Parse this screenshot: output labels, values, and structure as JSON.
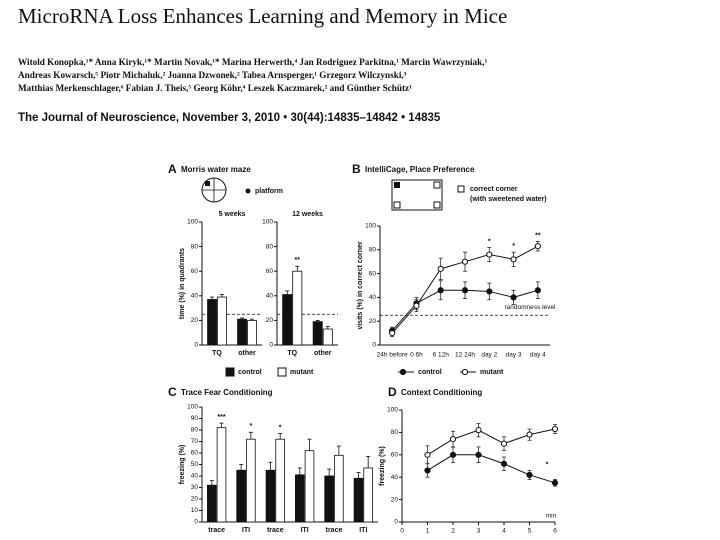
{
  "paper": {
    "title": "MicroRNA Loss Enhances Learning and Memory in Mice",
    "authors": [
      "Witold Konopka,¹* Anna Kiryk,¹* Martin Novak,¹* Marina Herwerth,⁴ Jan Rodriguez Parkitna,¹ Marcin Wawrzyniak,¹",
      "Andreas Kowarsch,⁵ Piotr Michaluk,² Joanna Dzwonek,² Tabea Arnsperger,¹ Grzegorz Wilczynski,³",
      "Matthias Merkenschlager,⁶ Fabian J. Theis,⁵ Georg Köhr,⁴ Leszek Kaczmarek,² and Günther Schütz¹"
    ],
    "journal": "The Journal of Neuroscience, November 3, 2010 • 30(44):14835–14842 • 14835"
  },
  "chart_data": [
    {
      "type": "bar",
      "panel": "A",
      "title": "Morris water maze",
      "legend_label": "platform",
      "subtitle": "5 weeks",
      "ylabel": "time (%) in quadrants",
      "categories": [
        "TQ",
        "other"
      ],
      "series": [
        {
          "name": "control",
          "color": "#111111",
          "values": [
            37,
            21
          ],
          "errors": [
            2,
            1
          ]
        },
        {
          "name": "mutant",
          "color": "#ffffff",
          "values": [
            39,
            20
          ],
          "errors": [
            2,
            1
          ]
        }
      ],
      "ylim": [
        0,
        100
      ],
      "yticks": [
        0,
        20,
        40,
        60,
        80,
        100
      ],
      "reference": 25
    },
    {
      "type": "bar",
      "subtitle": "12 weeks",
      "categories": [
        "TQ",
        "other"
      ],
      "series": [
        {
          "color": "#111111",
          "values": [
            41,
            19
          ],
          "errors": [
            3,
            1
          ]
        },
        {
          "color": "#ffffff",
          "values": [
            60,
            13
          ],
          "errors": [
            4,
            2
          ]
        }
      ],
      "ylim": [
        0,
        100
      ],
      "yticks": [
        0,
        20,
        40,
        60,
        80,
        100
      ],
      "reference": 25,
      "significance": [
        "**",
        null
      ]
    },
    {
      "type": "line",
      "panel": "B",
      "title": "IntelliCage, Place Preference",
      "legend_note": [
        "correct corner",
        "(with sweetened water)"
      ],
      "ylabel": "visits (%) in correct corner",
      "categories": [
        "24h before",
        "0 6h",
        "6 12h",
        "12 24h",
        "day 2",
        "day 3",
        "day 4"
      ],
      "series": [
        {
          "name": "control",
          "color": "#111111",
          "values": [
            12,
            35,
            46,
            46,
            45,
            40,
            46
          ],
          "errors": [
            3,
            5,
            8,
            7,
            7,
            6,
            7
          ]
        },
        {
          "name": "mutant",
          "color": "#ffffff",
          "values": [
            10,
            33,
            64,
            70,
            76,
            72,
            83
          ],
          "errors": [
            3,
            5,
            9,
            8,
            6,
            6,
            4
          ]
        }
      ],
      "ylim": [
        0,
        100
      ],
      "yticks": [
        0,
        20,
        40,
        60,
        80,
        100
      ],
      "reference": 25,
      "reference_label": "randomness level",
      "significance": [
        null,
        null,
        null,
        null,
        "*",
        "*",
        "**"
      ]
    },
    {
      "type": "bar",
      "panel": "C",
      "title": "Trace Fear Conditioning",
      "ylabel": "freezing (%)",
      "categories": [
        "trace",
        "ITI",
        "trace",
        "ITI",
        "trace",
        "ITI"
      ],
      "series": [
        {
          "color": "#111111",
          "values": [
            32,
            45,
            45,
            41,
            40,
            38
          ],
          "errors": [
            4,
            5,
            7,
            6,
            6,
            5
          ]
        },
        {
          "color": "#ffffff",
          "values": [
            82,
            72,
            72,
            62,
            58,
            47
          ],
          "errors": [
            4,
            6,
            5,
            10,
            8,
            10
          ]
        }
      ],
      "ylim": [
        0,
        100
      ],
      "yticks": [
        0,
        10,
        20,
        30,
        40,
        50,
        60,
        70,
        80,
        90,
        100
      ],
      "significance": [
        "***",
        "*",
        "*",
        null,
        null,
        null
      ]
    },
    {
      "type": "line",
      "panel": "D",
      "title": "Context Conditioning",
      "ylabel": "freezing (%)",
      "xlabel": "min",
      "x": [
        1,
        2,
        3,
        4,
        5,
        6
      ],
      "xlim": [
        0,
        6
      ],
      "xticks": [
        0,
        1,
        2,
        3,
        4,
        5,
        6
      ],
      "series": [
        {
          "color": "#111111",
          "values": [
            46,
            60,
            60,
            52,
            42,
            35
          ],
          "errors": [
            6,
            7,
            7,
            6,
            4,
            3
          ]
        },
        {
          "color": "#ffffff",
          "values": [
            60,
            74,
            82,
            70,
            78,
            83
          ],
          "errors": [
            8,
            7,
            6,
            6,
            5,
            4
          ]
        }
      ],
      "ylim": [
        0,
        100
      ],
      "yticks": [
        0,
        20,
        40,
        60,
        80,
        100
      ],
      "significance": [
        null,
        null,
        null,
        null,
        null,
        "*"
      ]
    }
  ]
}
